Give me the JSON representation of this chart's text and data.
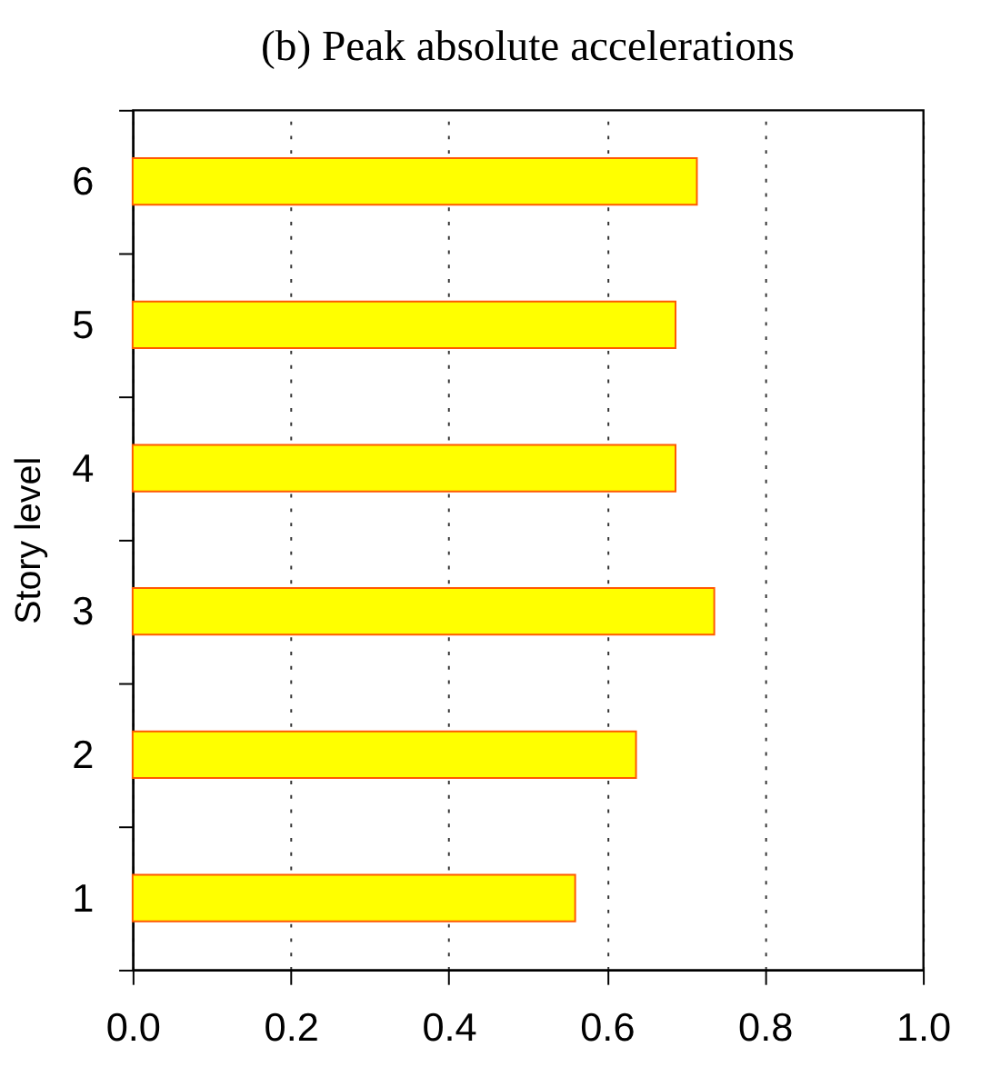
{
  "chart_data": {
    "type": "bar",
    "orientation": "horizontal",
    "title": "(b) Peak absolute accelerations",
    "ylabel": "Story level",
    "categories": [
      "6",
      "5",
      "4",
      "3",
      "2",
      "1"
    ],
    "values": [
      0.714,
      0.687,
      0.687,
      0.736,
      0.637,
      0.56
    ],
    "color": "#ffff00",
    "xlim": [
      0,
      1
    ],
    "xticks": [
      {
        "value": 0,
        "label": "0.0"
      },
      0.2,
      0.4,
      0.6,
      0.8,
      {
        "value": 1,
        "label": "1.0"
      }
    ],
    "grid": "x"
  }
}
